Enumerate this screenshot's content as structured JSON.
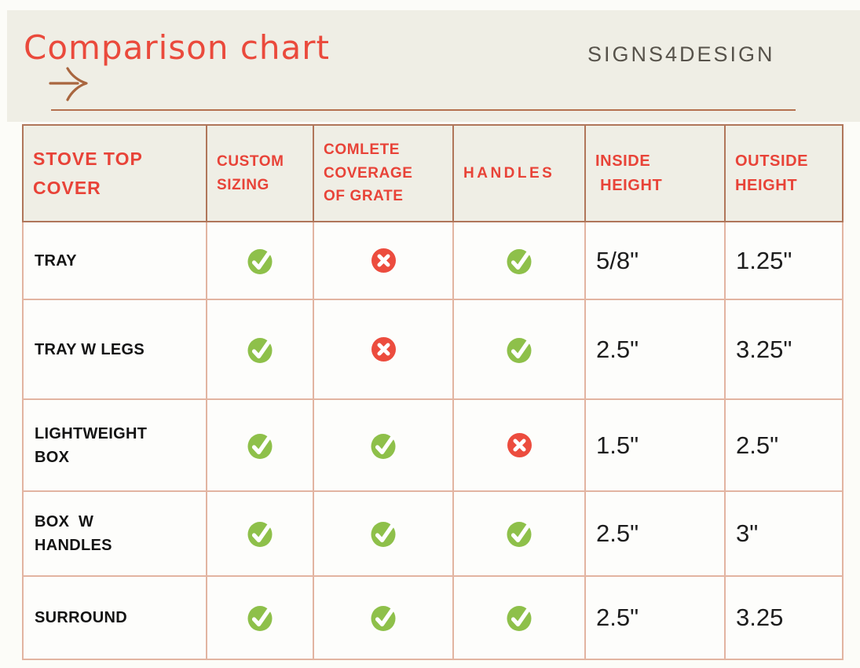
{
  "header": {
    "title": "Comparison chart",
    "brand": "SIGNS4DESIGN"
  },
  "icons": {
    "yes": "check-icon",
    "no": "cross-icon",
    "arrow": "hand-drawn-right-arrow-icon"
  },
  "colors": {
    "title_red": "#ea4a3c",
    "header_text_red": "#e84338",
    "check_green": "#8ec04a",
    "cross_red": "#ec4c3e",
    "band_beige": "#efeee5",
    "border_dark": "#b0765a",
    "border_light": "#e2b4a1",
    "arrow_brown": "#a9663f"
  },
  "table": {
    "header_labels": [
      "STOVE TOP\nCOVER",
      "CUSTOM\nSIZING",
      "COMLETE\nCOVERAGE\nOF GRATE",
      "HANDLES",
      "INSIDE\n HEIGHT",
      "OUTSIDE\nHEIGHT"
    ]
  },
  "chart_data": {
    "type": "table",
    "title": "Comparison chart",
    "columns": [
      "STOVE TOP COVER",
      "CUSTOM SIZING",
      "COMLETE COVERAGE OF GRATE",
      "HANDLES",
      "INSIDE HEIGHT",
      "OUTSIDE HEIGHT"
    ],
    "rows": [
      {
        "label": "TRAY",
        "values": [
          "yes",
          "no",
          "yes",
          "5/8\"",
          "1.25\""
        ]
      },
      {
        "label": "TRAY W LEGS",
        "values": [
          "yes",
          "no",
          "yes",
          "2.5\"",
          "3.25\""
        ]
      },
      {
        "label": "LIGHTWEIGHT\nBOX",
        "values": [
          "yes",
          "yes",
          "no",
          "1.5\"",
          "2.5\""
        ]
      },
      {
        "label": "BOX  W\nHANDLES",
        "values": [
          "yes",
          "yes",
          "yes",
          "2.5\"",
          "3\""
        ]
      },
      {
        "label": "SURROUND",
        "values": [
          "yes",
          "yes",
          "yes",
          "2.5\"",
          "3.25"
        ]
      }
    ]
  }
}
